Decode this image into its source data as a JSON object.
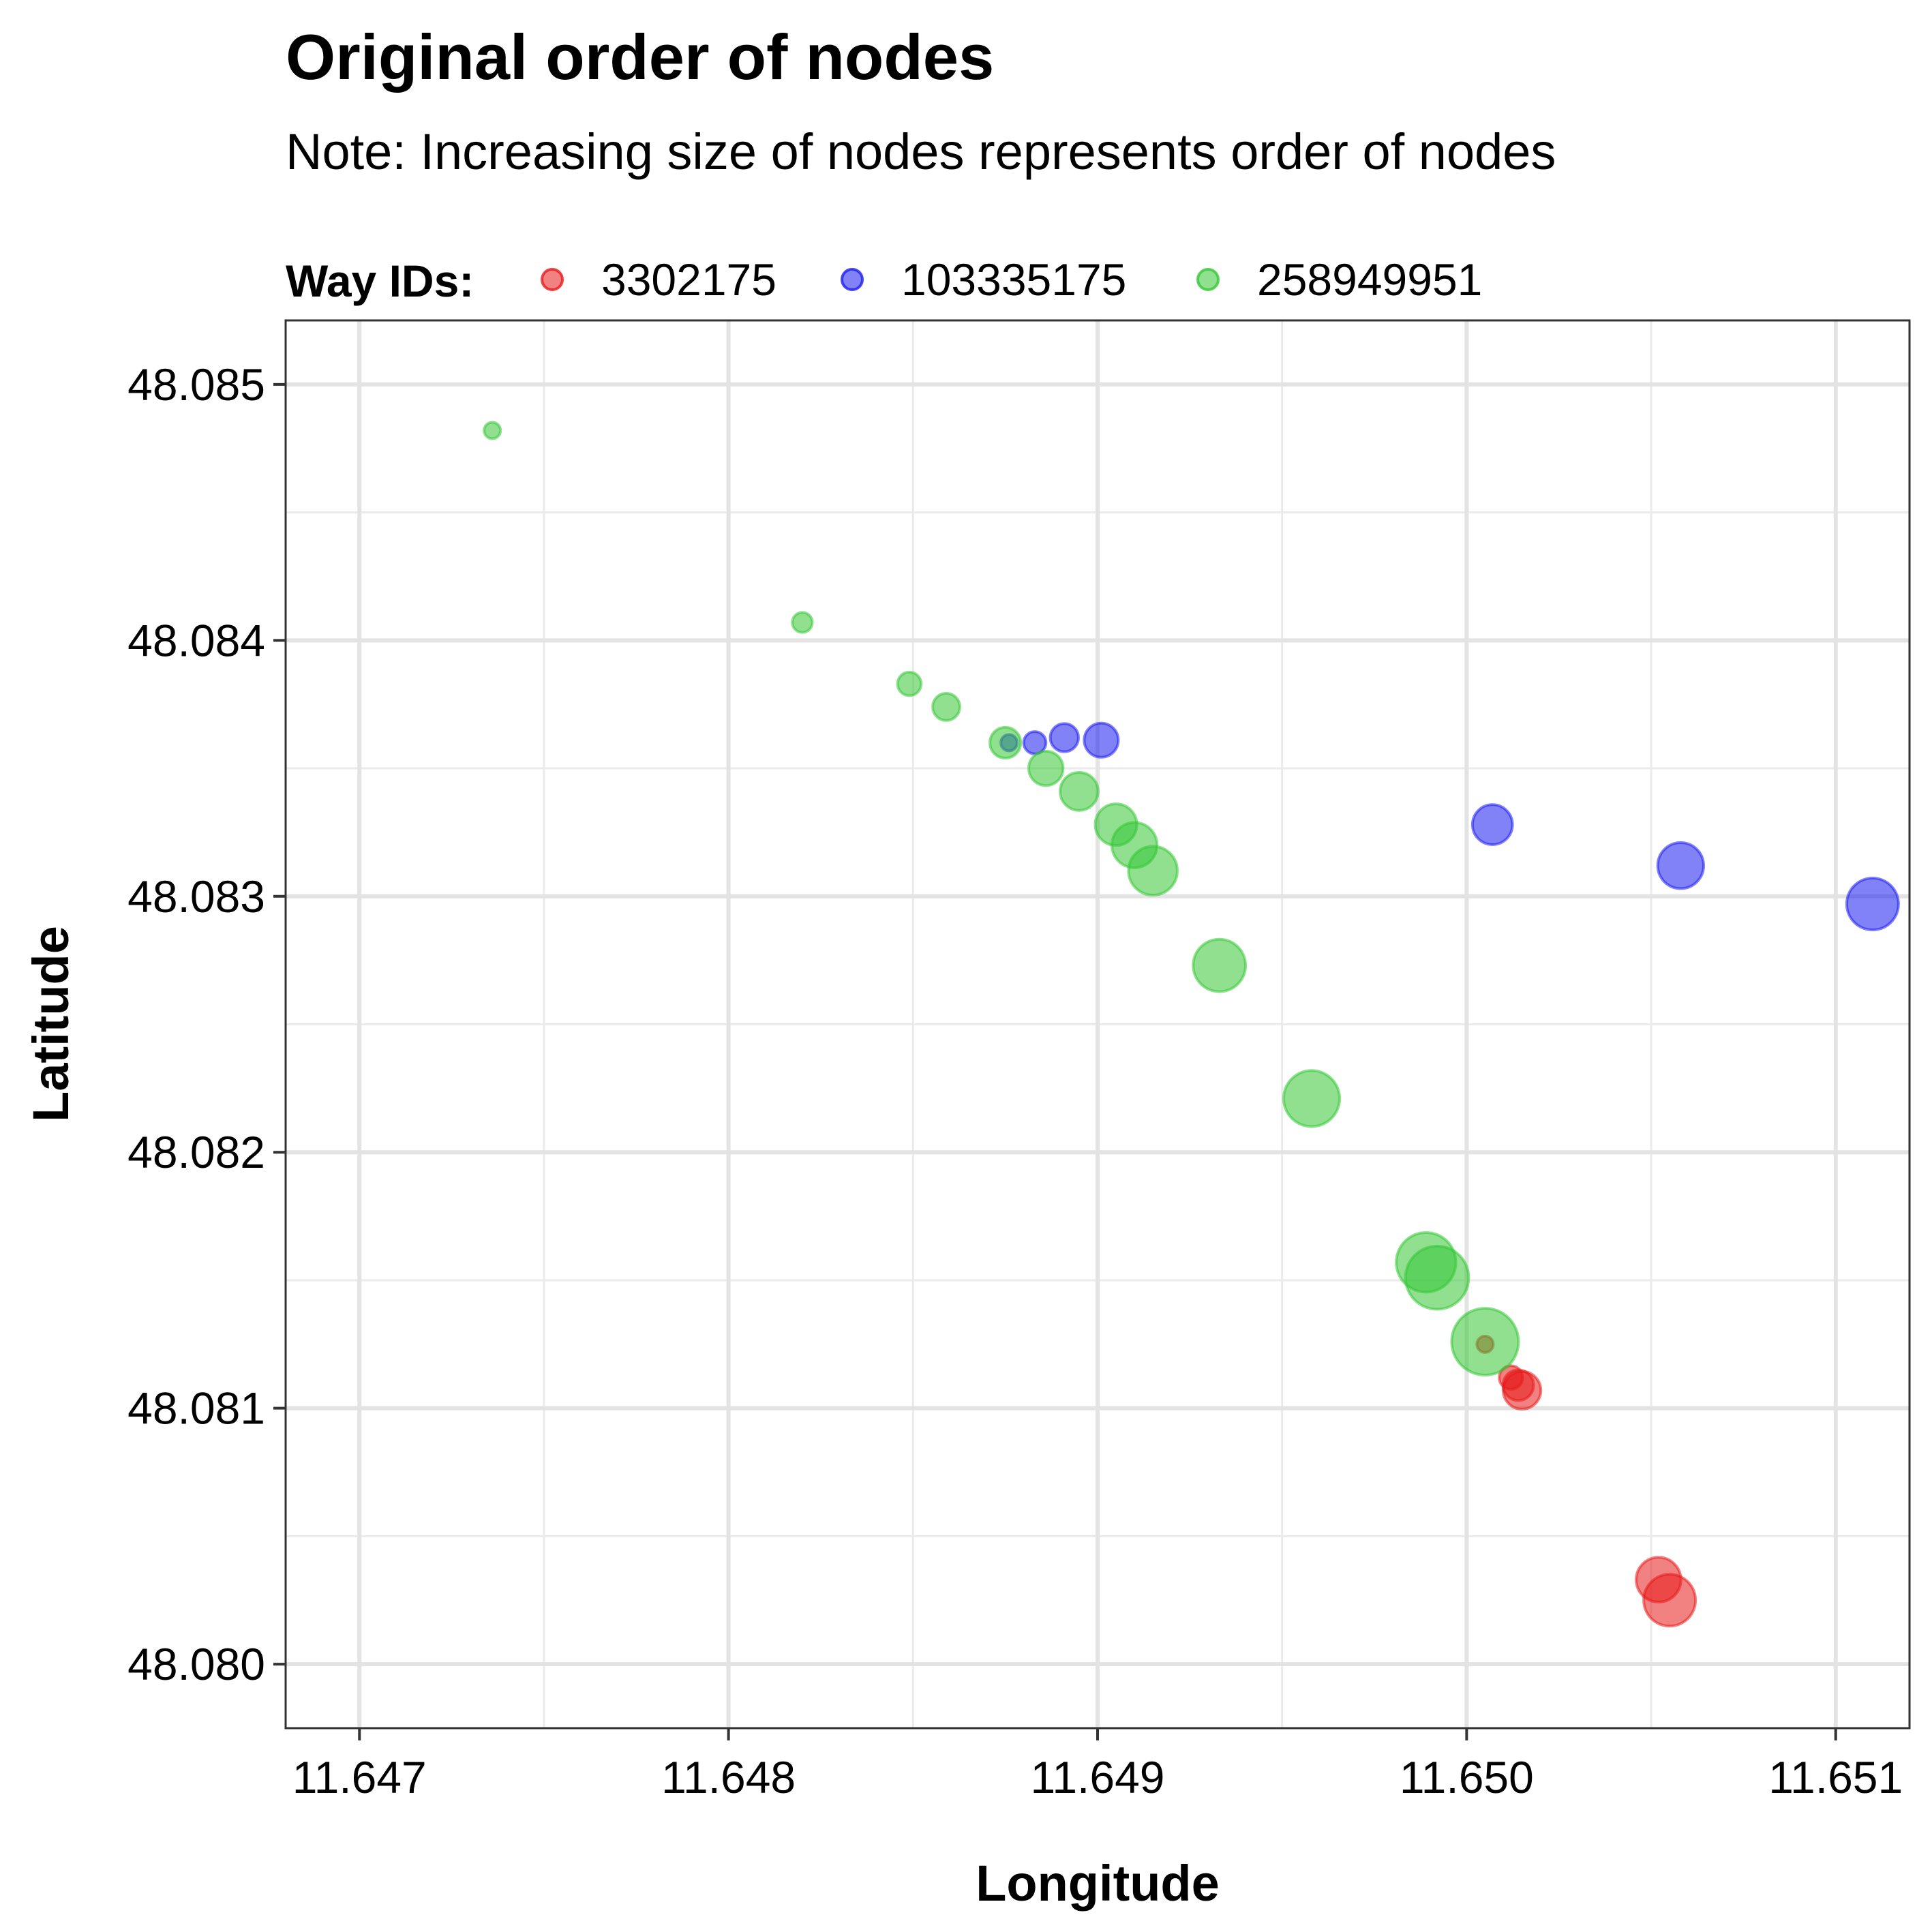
{
  "chart_data": {
    "type": "scatter",
    "title": "Original order of nodes",
    "subtitle": "Note: Increasing size of nodes represents order of nodes",
    "xlabel": "Longitude",
    "ylabel": "Latitude",
    "xlim": [
      11.6468,
      11.6512
    ],
    "ylim": [
      48.07975,
      48.08525
    ],
    "xticks": [
      "11.647",
      "11.648",
      "11.649",
      "11.650",
      "11.651"
    ],
    "yticks": [
      "48.080",
      "48.081",
      "48.082",
      "48.083",
      "48.084",
      "48.085"
    ],
    "grid": true,
    "legend_position": "top",
    "legend_title": "Way IDs:",
    "point_size_meaning": "order of nodes",
    "series": [
      {
        "name": "3302175",
        "color": "#e8191a",
        "points": [
          {
            "x": 11.65005,
            "y": 48.08125,
            "order": 1
          },
          {
            "x": 11.65012,
            "y": 48.08112,
            "order": 2
          },
          {
            "x": 11.65014,
            "y": 48.08109,
            "order": 3
          },
          {
            "x": 11.65015,
            "y": 48.08107,
            "order": 4
          },
          {
            "x": 11.65052,
            "y": 48.08033,
            "order": 5
          },
          {
            "x": 11.65055,
            "y": 48.08025,
            "order": 6
          }
        ]
      },
      {
        "name": "103335175",
        "color": "#1c1cf0",
        "points": [
          {
            "x": 11.64876,
            "y": 48.0836,
            "order": 1
          },
          {
            "x": 11.64883,
            "y": 48.0836,
            "order": 2
          },
          {
            "x": 11.64891,
            "y": 48.08362,
            "order": 3
          },
          {
            "x": 11.64901,
            "y": 48.08361,
            "order": 4
          },
          {
            "x": 11.65007,
            "y": 48.08328,
            "order": 5
          },
          {
            "x": 11.65058,
            "y": 48.08312,
            "order": 6
          },
          {
            "x": 11.6511,
            "y": 48.08297,
            "order": 7
          }
        ]
      },
      {
        "name": "258949951",
        "color": "#35c735",
        "points": [
          {
            "x": 11.64736,
            "y": 48.08482,
            "order": 1
          },
          {
            "x": 11.6482,
            "y": 48.08407,
            "order": 2
          },
          {
            "x": 11.64849,
            "y": 48.08383,
            "order": 3
          },
          {
            "x": 11.64859,
            "y": 48.08374,
            "order": 4
          },
          {
            "x": 11.64875,
            "y": 48.0836,
            "order": 5
          },
          {
            "x": 11.64886,
            "y": 48.0835,
            "order": 6
          },
          {
            "x": 11.64895,
            "y": 48.08341,
            "order": 7
          },
          {
            "x": 11.64905,
            "y": 48.08328,
            "order": 8
          },
          {
            "x": 11.6491,
            "y": 48.0832,
            "order": 9
          },
          {
            "x": 11.64915,
            "y": 48.0831,
            "order": 10
          },
          {
            "x": 11.64933,
            "y": 48.08273,
            "order": 11
          },
          {
            "x": 11.64958,
            "y": 48.08221,
            "order": 12
          },
          {
            "x": 11.64989,
            "y": 48.08157,
            "order": 13
          },
          {
            "x": 11.64992,
            "y": 48.08151,
            "order": 14
          },
          {
            "x": 11.65005,
            "y": 48.08126,
            "order": 15
          }
        ]
      }
    ]
  }
}
